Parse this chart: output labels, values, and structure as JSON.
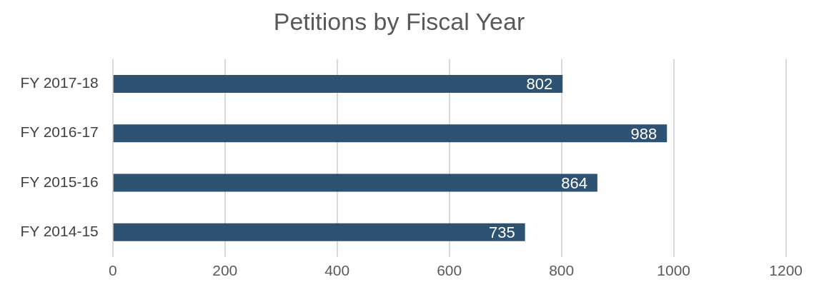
{
  "chart_data": {
    "type": "bar",
    "orientation": "horizontal",
    "title": "Petitions by Fiscal Year",
    "categories": [
      "FY 2017-18",
      "FY 2016-17",
      "FY 2015-16",
      "FY 2014-15"
    ],
    "values": [
      802,
      988,
      864,
      735
    ],
    "color": "#2e5372",
    "xlim": [
      0,
      1200
    ],
    "xticks": [
      0,
      200,
      400,
      600,
      800,
      1000,
      1200
    ],
    "grid": "x",
    "data_labels": true,
    "legend": false
  }
}
